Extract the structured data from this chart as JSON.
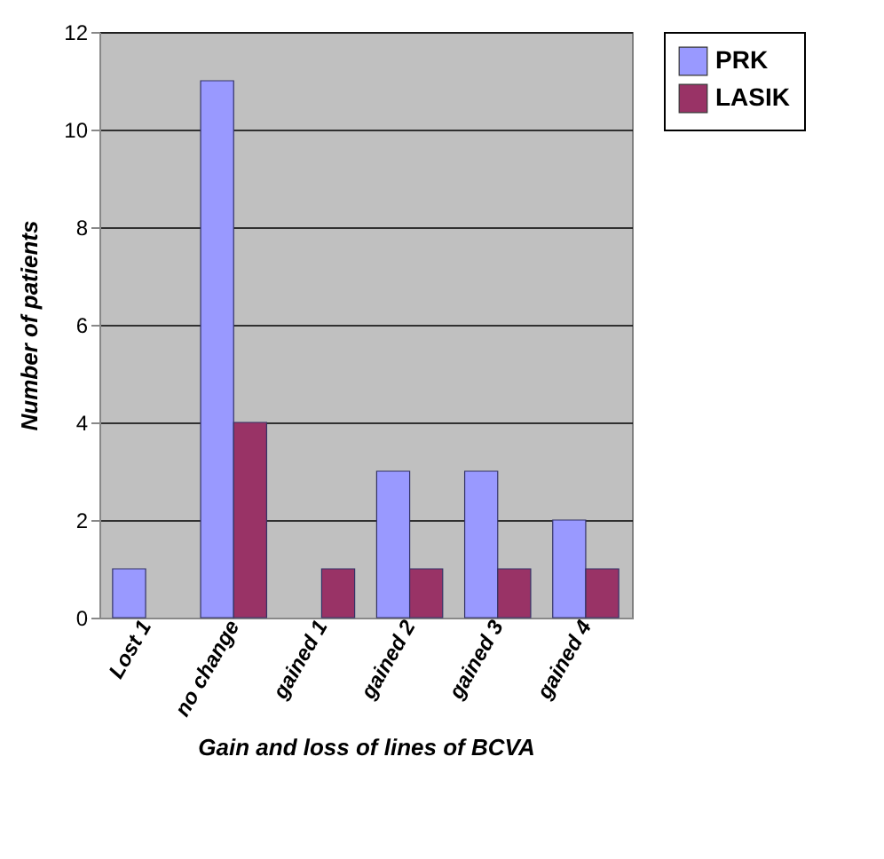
{
  "chart_data": {
    "type": "bar",
    "xlabel": "Gain and loss of lines of BCVA",
    "ylabel": "Number of patients",
    "categories": [
      "Lost 1",
      "no change",
      "gained 1",
      "gained 2",
      "gained 3",
      "gained 4"
    ],
    "series": [
      {
        "name": "PRK",
        "color": "#9999ff",
        "values": [
          1,
          11,
          0,
          3,
          3,
          2
        ]
      },
      {
        "name": "LASIK",
        "color": "#993366",
        "values": [
          0,
          4,
          1,
          1,
          1,
          1
        ]
      }
    ],
    "ylim": [
      0,
      12
    ],
    "yticks": [
      0,
      2,
      4,
      6,
      8,
      10,
      12
    ],
    "grid": "y",
    "legend": "top right"
  }
}
